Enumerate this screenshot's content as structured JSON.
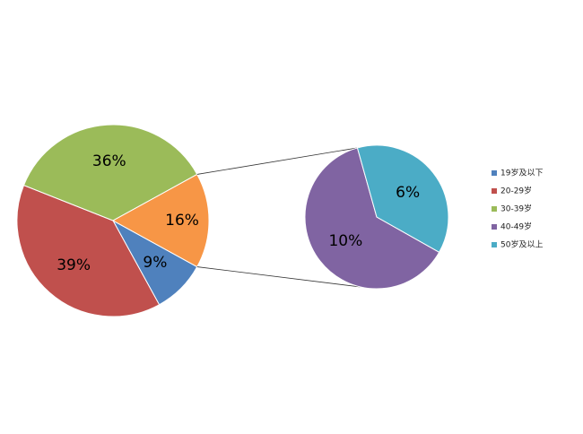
{
  "chart_data": {
    "type": "pie-of-pie",
    "categories": [
      "19岁及以下",
      "20-29岁",
      "30-39岁",
      "40-49岁",
      "50岁及以上"
    ],
    "values": [
      9,
      39,
      36,
      10,
      6
    ],
    "value_labels": [
      "9%",
      "39%",
      "36%",
      "10%",
      "6%"
    ],
    "colors": [
      "#4f81bd",
      "#c0504d",
      "#9bbb59",
      "#8064a2",
      "#4bacc6"
    ],
    "secondary_count": 2,
    "other_value": 16,
    "other_label": "16%",
    "other_color": "#f79646",
    "legend": "right"
  }
}
